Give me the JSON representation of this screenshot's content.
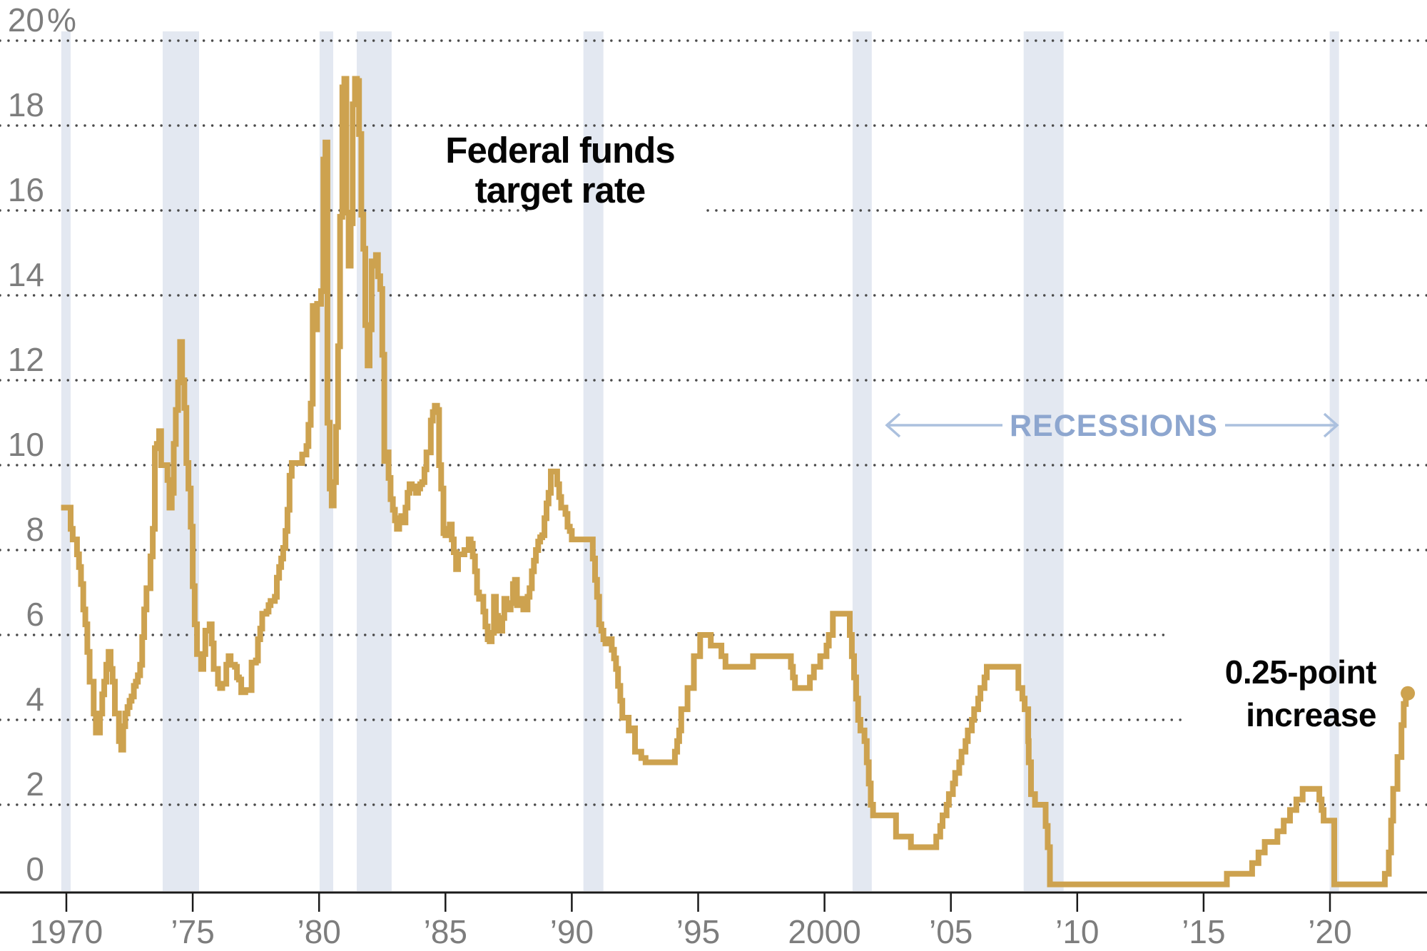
{
  "chart_data": {
    "type": "line",
    "title": "Federal funds target rate",
    "title_lines": [
      "Federal funds",
      "target rate"
    ],
    "unit": "%",
    "line_style": "step",
    "line_color": "#cda24f",
    "recession_band_color": "#e3e8f1",
    "gridline_color": "#4a4a4a",
    "axis_label_color": "#7d7d7d",
    "recessions_label": "RECESSIONS",
    "recessions_label_color": "#8da6cf",
    "annotation_lines": [
      "0.25-point",
      "increase"
    ],
    "ylim": [
      0,
      20
    ],
    "grid": "dotted horizontal at every 2 points",
    "legend_position": "none",
    "y_axis": {
      "ticks": [
        {
          "value": 0,
          "label": "0",
          "suffix": ""
        },
        {
          "value": 2,
          "label": "2",
          "suffix": ""
        },
        {
          "value": 4,
          "label": "4",
          "suffix": ""
        },
        {
          "value": 6,
          "label": "6",
          "suffix": ""
        },
        {
          "value": 8,
          "label": "8",
          "suffix": ""
        },
        {
          "value": 10,
          "label": "10",
          "suffix": ""
        },
        {
          "value": 12,
          "label": "12",
          "suffix": ""
        },
        {
          "value": 14,
          "label": "14",
          "suffix": ""
        },
        {
          "value": 16,
          "label": "16",
          "suffix": ""
        },
        {
          "value": 18,
          "label": "18",
          "suffix": ""
        },
        {
          "value": 20,
          "label": "20",
          "suffix": "%"
        }
      ]
    },
    "x_axis": {
      "ticks": [
        {
          "year": 1970,
          "label": "1970"
        },
        {
          "year": 1975,
          "label": "’75"
        },
        {
          "year": 1980,
          "label": "’80"
        },
        {
          "year": 1985,
          "label": "’85"
        },
        {
          "year": 1990,
          "label": "’90"
        },
        {
          "year": 1995,
          "label": "’95"
        },
        {
          "year": 2000,
          "label": "2000"
        },
        {
          "year": 2005,
          "label": "’05"
        },
        {
          "year": 2010,
          "label": "’10"
        },
        {
          "year": 2015,
          "label": "’15"
        },
        {
          "year": 2020,
          "label": "’20"
        }
      ]
    },
    "recessions": [
      [
        1969.8,
        1970.17
      ],
      [
        1973.81,
        1975.25
      ],
      [
        1980.02,
        1980.56
      ],
      [
        1981.49,
        1982.87
      ],
      [
        1990.46,
        1991.25
      ],
      [
        2001.11,
        2001.87
      ],
      [
        2007.88,
        2009.46
      ],
      [
        2019.99,
        2020.36
      ]
    ],
    "series_name": "Federal funds target rate (percent)",
    "series": [
      [
        1969.79,
        9.0
      ],
      [
        1970.17,
        8.5
      ],
      [
        1970.25,
        8.25
      ],
      [
        1970.42,
        7.9
      ],
      [
        1970.5,
        7.6
      ],
      [
        1970.58,
        7.2
      ],
      [
        1970.67,
        6.6
      ],
      [
        1970.75,
        6.25
      ],
      [
        1970.83,
        5.6
      ],
      [
        1970.92,
        4.9
      ],
      [
        1971.08,
        4.15
      ],
      [
        1971.17,
        3.7
      ],
      [
        1971.33,
        4.15
      ],
      [
        1971.42,
        4.6
      ],
      [
        1971.5,
        4.9
      ],
      [
        1971.58,
        5.3
      ],
      [
        1971.67,
        5.6
      ],
      [
        1971.75,
        5.2
      ],
      [
        1971.83,
        4.9
      ],
      [
        1971.92,
        4.15
      ],
      [
        1972.08,
        3.5
      ],
      [
        1972.17,
        3.3
      ],
      [
        1972.25,
        3.85
      ],
      [
        1972.33,
        4.15
      ],
      [
        1972.42,
        4.3
      ],
      [
        1972.5,
        4.45
      ],
      [
        1972.58,
        4.55
      ],
      [
        1972.67,
        4.8
      ],
      [
        1972.75,
        4.9
      ],
      [
        1972.83,
        5.05
      ],
      [
        1972.92,
        5.3
      ],
      [
        1973.0,
        5.95
      ],
      [
        1973.08,
        6.6
      ],
      [
        1973.17,
        7.1
      ],
      [
        1973.33,
        7.85
      ],
      [
        1973.42,
        8.5
      ],
      [
        1973.5,
        10.4
      ],
      [
        1973.58,
        10.5
      ],
      [
        1973.67,
        10.8
      ],
      [
        1973.75,
        10.0
      ],
      [
        1974.0,
        9.65
      ],
      [
        1974.08,
        9.0
      ],
      [
        1974.17,
        9.35
      ],
      [
        1974.25,
        10.5
      ],
      [
        1974.33,
        11.3
      ],
      [
        1974.42,
        11.95
      ],
      [
        1974.5,
        12.9
      ],
      [
        1974.58,
        12.0
      ],
      [
        1974.67,
        11.35
      ],
      [
        1974.75,
        10.05
      ],
      [
        1974.83,
        9.45
      ],
      [
        1974.92,
        8.55
      ],
      [
        1975.0,
        7.15
      ],
      [
        1975.08,
        6.25
      ],
      [
        1975.17,
        5.55
      ],
      [
        1975.33,
        5.2
      ],
      [
        1975.42,
        5.55
      ],
      [
        1975.5,
        6.1
      ],
      [
        1975.67,
        6.25
      ],
      [
        1975.75,
        5.8
      ],
      [
        1975.83,
        5.2
      ],
      [
        1976.0,
        4.85
      ],
      [
        1976.08,
        4.75
      ],
      [
        1976.17,
        4.85
      ],
      [
        1976.33,
        5.3
      ],
      [
        1976.42,
        5.5
      ],
      [
        1976.5,
        5.3
      ],
      [
        1976.67,
        5.25
      ],
      [
        1976.75,
        5.0
      ],
      [
        1976.83,
        4.95
      ],
      [
        1976.92,
        4.65
      ],
      [
        1977.08,
        4.7
      ],
      [
        1977.33,
        5.35
      ],
      [
        1977.5,
        5.4
      ],
      [
        1977.58,
        5.9
      ],
      [
        1977.67,
        6.15
      ],
      [
        1977.75,
        6.5
      ],
      [
        1977.92,
        6.55
      ],
      [
        1978.0,
        6.7
      ],
      [
        1978.08,
        6.8
      ],
      [
        1978.25,
        6.9
      ],
      [
        1978.33,
        7.35
      ],
      [
        1978.42,
        7.6
      ],
      [
        1978.5,
        7.8
      ],
      [
        1978.58,
        8.05
      ],
      [
        1978.67,
        8.45
      ],
      [
        1978.75,
        8.95
      ],
      [
        1978.83,
        9.75
      ],
      [
        1978.92,
        10.05
      ],
      [
        1979.33,
        10.25
      ],
      [
        1979.5,
        10.45
      ],
      [
        1979.58,
        10.95
      ],
      [
        1979.67,
        11.45
      ],
      [
        1979.75,
        13.75
      ],
      [
        1979.83,
        13.2
      ],
      [
        1979.92,
        13.8
      ],
      [
        1980.08,
        14.1
      ],
      [
        1980.17,
        17.2
      ],
      [
        1980.25,
        17.6
      ],
      [
        1980.33,
        11.0
      ],
      [
        1980.42,
        9.45
      ],
      [
        1980.5,
        9.05
      ],
      [
        1980.58,
        9.6
      ],
      [
        1980.67,
        10.9
      ],
      [
        1980.75,
        12.8
      ],
      [
        1980.83,
        15.85
      ],
      [
        1980.92,
        18.9
      ],
      [
        1981.0,
        19.1
      ],
      [
        1981.08,
        15.95
      ],
      [
        1981.17,
        14.7
      ],
      [
        1981.25,
        15.7
      ],
      [
        1981.33,
        18.5
      ],
      [
        1981.42,
        19.1
      ],
      [
        1981.5,
        19.05
      ],
      [
        1981.58,
        17.8
      ],
      [
        1981.67,
        15.9
      ],
      [
        1981.75,
        15.1
      ],
      [
        1981.83,
        13.3
      ],
      [
        1981.92,
        12.35
      ],
      [
        1982.0,
        13.2
      ],
      [
        1982.08,
        14.8
      ],
      [
        1982.17,
        14.7
      ],
      [
        1982.25,
        14.95
      ],
      [
        1982.33,
        14.45
      ],
      [
        1982.42,
        14.15
      ],
      [
        1982.5,
        12.6
      ],
      [
        1982.58,
        10.1
      ],
      [
        1982.67,
        10.3
      ],
      [
        1982.75,
        9.7
      ],
      [
        1982.83,
        9.2
      ],
      [
        1982.92,
        8.95
      ],
      [
        1983.0,
        8.7
      ],
      [
        1983.08,
        8.5
      ],
      [
        1983.17,
        8.75
      ],
      [
        1983.25,
        8.8
      ],
      [
        1983.33,
        8.65
      ],
      [
        1983.42,
        9.0
      ],
      [
        1983.5,
        9.35
      ],
      [
        1983.58,
        9.55
      ],
      [
        1983.67,
        9.45
      ],
      [
        1983.75,
        9.5
      ],
      [
        1983.83,
        9.35
      ],
      [
        1983.92,
        9.45
      ],
      [
        1984.0,
        9.55
      ],
      [
        1984.08,
        9.6
      ],
      [
        1984.17,
        9.9
      ],
      [
        1984.25,
        10.3
      ],
      [
        1984.42,
        11.05
      ],
      [
        1984.5,
        11.25
      ],
      [
        1984.58,
        11.4
      ],
      [
        1984.67,
        11.3
      ],
      [
        1984.75,
        10.0
      ],
      [
        1984.83,
        9.45
      ],
      [
        1984.92,
        8.4
      ],
      [
        1985.0,
        8.35
      ],
      [
        1985.08,
        8.5
      ],
      [
        1985.17,
        8.6
      ],
      [
        1985.25,
        8.25
      ],
      [
        1985.33,
        7.95
      ],
      [
        1985.42,
        7.55
      ],
      [
        1985.5,
        7.9
      ],
      [
        1985.75,
        8.0
      ],
      [
        1985.92,
        8.25
      ],
      [
        1986.0,
        8.15
      ],
      [
        1986.08,
        7.85
      ],
      [
        1986.17,
        7.5
      ],
      [
        1986.25,
        7.0
      ],
      [
        1986.33,
        6.85
      ],
      [
        1986.42,
        6.9
      ],
      [
        1986.5,
        6.55
      ],
      [
        1986.58,
        6.2
      ],
      [
        1986.67,
        5.9
      ],
      [
        1986.75,
        5.85
      ],
      [
        1986.83,
        6.05
      ],
      [
        1986.92,
        6.9
      ],
      [
        1987.0,
        6.45
      ],
      [
        1987.08,
        6.1
      ],
      [
        1987.25,
        6.4
      ],
      [
        1987.33,
        6.85
      ],
      [
        1987.42,
        6.75
      ],
      [
        1987.5,
        6.6
      ],
      [
        1987.58,
        6.75
      ],
      [
        1987.67,
        7.2
      ],
      [
        1987.75,
        7.3
      ],
      [
        1987.83,
        6.7
      ],
      [
        1987.92,
        6.75
      ],
      [
        1988.0,
        6.85
      ],
      [
        1988.08,
        6.6
      ],
      [
        1988.25,
        6.9
      ],
      [
        1988.33,
        7.1
      ],
      [
        1988.42,
        7.5
      ],
      [
        1988.5,
        7.75
      ],
      [
        1988.58,
        8.0
      ],
      [
        1988.67,
        8.2
      ],
      [
        1988.75,
        8.3
      ],
      [
        1988.83,
        8.35
      ],
      [
        1988.92,
        8.75
      ],
      [
        1989.0,
        9.1
      ],
      [
        1989.08,
        9.35
      ],
      [
        1989.17,
        9.85
      ],
      [
        1989.42,
        9.55
      ],
      [
        1989.5,
        9.25
      ],
      [
        1989.58,
        9.0
      ],
      [
        1989.75,
        8.85
      ],
      [
        1989.83,
        8.55
      ],
      [
        1989.92,
        8.45
      ],
      [
        1990.0,
        8.25
      ],
      [
        1990.83,
        7.8
      ],
      [
        1990.92,
        7.3
      ],
      [
        1991.0,
        6.9
      ],
      [
        1991.08,
        6.25
      ],
      [
        1991.17,
        6.1
      ],
      [
        1991.25,
        5.9
      ],
      [
        1991.33,
        5.8
      ],
      [
        1991.42,
        5.9
      ],
      [
        1991.58,
        5.65
      ],
      [
        1991.67,
        5.45
      ],
      [
        1991.75,
        5.2
      ],
      [
        1991.83,
        4.8
      ],
      [
        1991.92,
        4.45
      ],
      [
        1992.0,
        4.05
      ],
      [
        1992.25,
        3.75
      ],
      [
        1992.33,
        3.8
      ],
      [
        1992.5,
        3.25
      ],
      [
        1992.75,
        3.1
      ],
      [
        1992.92,
        3.0
      ],
      [
        1994.08,
        3.25
      ],
      [
        1994.17,
        3.5
      ],
      [
        1994.25,
        3.75
      ],
      [
        1994.33,
        4.25
      ],
      [
        1994.58,
        4.75
      ],
      [
        1994.83,
        5.5
      ],
      [
        1995.08,
        6.0
      ],
      [
        1995.5,
        5.75
      ],
      [
        1995.92,
        5.5
      ],
      [
        1996.08,
        5.25
      ],
      [
        1997.17,
        5.5
      ],
      [
        1998.67,
        5.25
      ],
      [
        1998.75,
        5.0
      ],
      [
        1998.83,
        4.75
      ],
      [
        1999.42,
        5.0
      ],
      [
        1999.58,
        5.25
      ],
      [
        1999.83,
        5.5
      ],
      [
        2000.08,
        5.75
      ],
      [
        2000.17,
        6.0
      ],
      [
        2000.33,
        6.5
      ],
      [
        2001.0,
        6.0
      ],
      [
        2001.08,
        5.5
      ],
      [
        2001.17,
        5.0
      ],
      [
        2001.25,
        4.5
      ],
      [
        2001.33,
        4.0
      ],
      [
        2001.42,
        3.75
      ],
      [
        2001.58,
        3.5
      ],
      [
        2001.67,
        3.0
      ],
      [
        2001.75,
        2.5
      ],
      [
        2001.83,
        2.0
      ],
      [
        2001.92,
        1.75
      ],
      [
        2002.83,
        1.25
      ],
      [
        2003.42,
        1.0
      ],
      [
        2004.42,
        1.25
      ],
      [
        2004.58,
        1.5
      ],
      [
        2004.67,
        1.75
      ],
      [
        2004.83,
        2.0
      ],
      [
        2004.92,
        2.25
      ],
      [
        2005.08,
        2.5
      ],
      [
        2005.17,
        2.75
      ],
      [
        2005.33,
        3.0
      ],
      [
        2005.42,
        3.25
      ],
      [
        2005.58,
        3.5
      ],
      [
        2005.67,
        3.75
      ],
      [
        2005.83,
        4.0
      ],
      [
        2005.92,
        4.25
      ],
      [
        2006.08,
        4.5
      ],
      [
        2006.17,
        4.75
      ],
      [
        2006.33,
        5.0
      ],
      [
        2006.42,
        5.25
      ],
      [
        2007.67,
        4.75
      ],
      [
        2007.83,
        4.5
      ],
      [
        2007.92,
        4.25
      ],
      [
        2008.06,
        3.5
      ],
      [
        2008.08,
        3.0
      ],
      [
        2008.17,
        2.25
      ],
      [
        2008.33,
        2.0
      ],
      [
        2008.75,
        1.5
      ],
      [
        2008.83,
        1.0
      ],
      [
        2008.92,
        0.125
      ],
      [
        2015.92,
        0.375
      ],
      [
        2016.92,
        0.625
      ],
      [
        2017.17,
        0.875
      ],
      [
        2017.42,
        1.125
      ],
      [
        2017.92,
        1.375
      ],
      [
        2018.17,
        1.625
      ],
      [
        2018.42,
        1.875
      ],
      [
        2018.67,
        2.125
      ],
      [
        2018.92,
        2.375
      ],
      [
        2019.58,
        2.125
      ],
      [
        2019.67,
        1.875
      ],
      [
        2019.75,
        1.625
      ],
      [
        2020.17,
        0.125
      ],
      [
        2022.17,
        0.375
      ],
      [
        2022.33,
        0.875
      ],
      [
        2022.42,
        1.625
      ],
      [
        2022.5,
        2.375
      ],
      [
        2022.67,
        3.125
      ],
      [
        2022.83,
        3.875
      ],
      [
        2022.92,
        4.375
      ],
      [
        2023.0,
        4.625
      ]
    ],
    "end_dot": {
      "year": 2023.08,
      "rate": 4.625
    }
  }
}
